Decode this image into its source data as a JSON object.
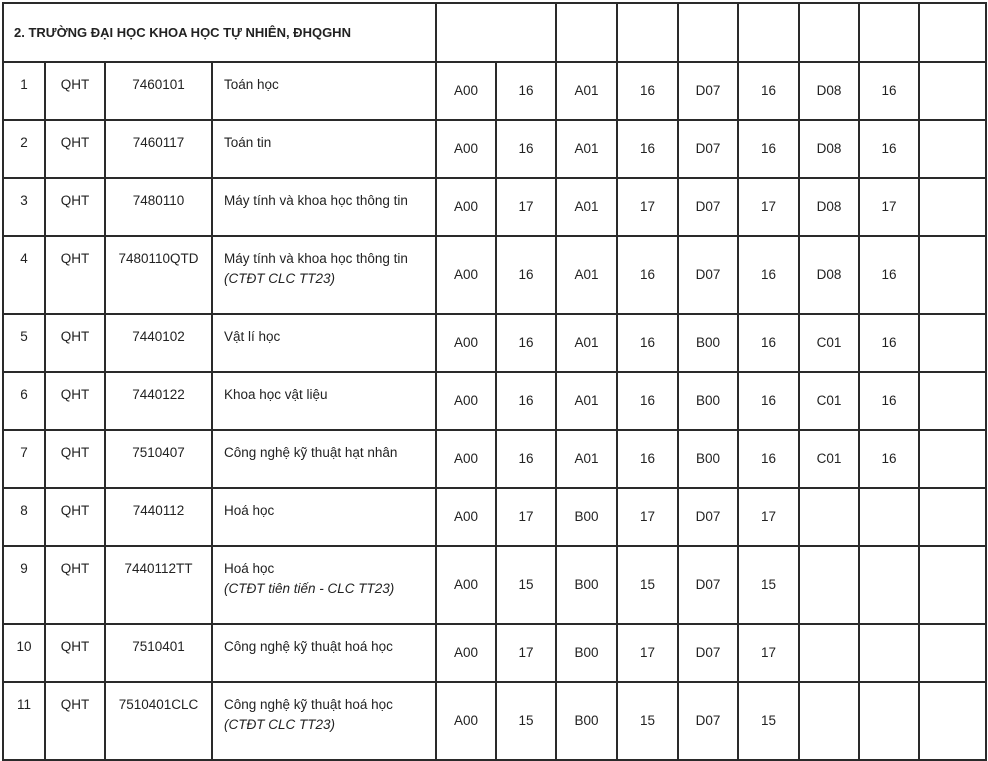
{
  "section_title": "2. TRƯỜNG ĐẠI HỌC KHOA HỌC TỰ NHIÊN, ĐHQGHN",
  "rows": [
    {
      "stt": "1",
      "school": "QHT",
      "code": "7460101",
      "name": "Toán học",
      "note": "",
      "c1": "A00",
      "s1": "16",
      "c2": "A01",
      "s2": "16",
      "c3": "D07",
      "s3": "16",
      "c4": "D08",
      "s4": "16"
    },
    {
      "stt": "2",
      "school": "QHT",
      "code": "7460117",
      "name": "Toán tin",
      "note": "",
      "c1": "A00",
      "s1": "16",
      "c2": "A01",
      "s2": "16",
      "c3": "D07",
      "s3": "16",
      "c4": "D08",
      "s4": "16"
    },
    {
      "stt": "3",
      "school": "QHT",
      "code": "7480110",
      "name": "Máy tính và khoa học thông tin",
      "note": "",
      "c1": "A00",
      "s1": "17",
      "c2": "A01",
      "s2": "17",
      "c3": "D07",
      "s3": "17",
      "c4": "D08",
      "s4": "17"
    },
    {
      "stt": "4",
      "school": "QHT",
      "code": "7480110QTD",
      "name": "Máy tính và khoa học thông tin",
      "note": "(CTĐT CLC TT23)",
      "c1": "A00",
      "s1": "16",
      "c2": "A01",
      "s2": "16",
      "c3": "D07",
      "s3": "16",
      "c4": "D08",
      "s4": "16"
    },
    {
      "stt": "5",
      "school": "QHT",
      "code": "7440102",
      "name": "Vật lí học",
      "note": "",
      "c1": "A00",
      "s1": "16",
      "c2": "A01",
      "s2": "16",
      "c3": "B00",
      "s3": "16",
      "c4": "C01",
      "s4": "16"
    },
    {
      "stt": "6",
      "school": "QHT",
      "code": "7440122",
      "name": "Khoa học vật liệu",
      "note": "",
      "c1": "A00",
      "s1": "16",
      "c2": "A01",
      "s2": "16",
      "c3": "B00",
      "s3": "16",
      "c4": "C01",
      "s4": "16"
    },
    {
      "stt": "7",
      "school": "QHT",
      "code": "7510407",
      "name": "Công nghệ kỹ thuật hạt nhân",
      "note": "",
      "c1": "A00",
      "s1": "16",
      "c2": "A01",
      "s2": "16",
      "c3": "B00",
      "s3": "16",
      "c4": "C01",
      "s4": "16"
    },
    {
      "stt": "8",
      "school": "QHT",
      "code": "7440112",
      "name": "Hoá học",
      "note": "",
      "c1": "A00",
      "s1": "17",
      "c2": "B00",
      "s2": "17",
      "c3": "D07",
      "s3": "17",
      "c4": "",
      "s4": ""
    },
    {
      "stt": "9",
      "school": "QHT",
      "code": "7440112TT",
      "name": "Hoá học",
      "note": "(CTĐT tiên tiến - CLC TT23)",
      "c1": "A00",
      "s1": "15",
      "c2": "B00",
      "s2": "15",
      "c3": "D07",
      "s3": "15",
      "c4": "",
      "s4": ""
    },
    {
      "stt": "10",
      "school": "QHT",
      "code": "7510401",
      "name": "Công nghệ kỹ thuật hoá học",
      "note": "",
      "c1": "A00",
      "s1": "17",
      "c2": "B00",
      "s2": "17",
      "c3": "D07",
      "s3": "17",
      "c4": "",
      "s4": ""
    },
    {
      "stt": "11",
      "school": "QHT",
      "code": "7510401CLC",
      "name": "Công nghệ kỹ thuật hoá học",
      "note": "(CTĐT CLC TT23)",
      "c1": "A00",
      "s1": "15",
      "c2": "B00",
      "s2": "15",
      "c3": "D07",
      "s3": "15",
      "c4": "",
      "s4": ""
    }
  ]
}
